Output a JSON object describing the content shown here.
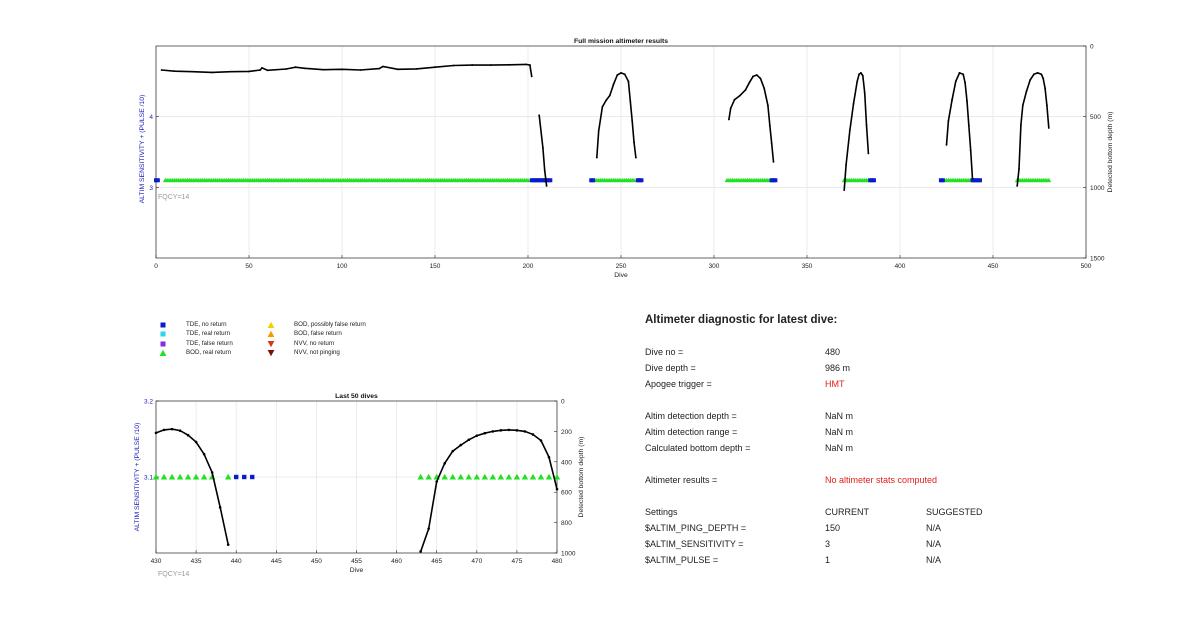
{
  "colors": {
    "tde_no_return": "#0a1cc8",
    "tde_real_return": "#2ad6ea",
    "tde_false_return": "#8a2be2",
    "bod_real_return": "#22e022",
    "bod_possibly_false_return": "#f5d000",
    "bod_false_return": "#f59a00",
    "nvv_no_return": "#d63a10",
    "nvv_not_pinging": "#7a1010",
    "depth_line": "#000000",
    "left_axis_label": "#1a1ab8",
    "grid": "#e6e6e6",
    "note": "#9a9a9a",
    "alert": "#e0201c"
  },
  "legend": [
    {
      "key": "tde_no_return",
      "marker": "square",
      "label": "TDE, no return"
    },
    {
      "key": "tde_real_return",
      "marker": "square",
      "label": "TDE, real return"
    },
    {
      "key": "tde_false_return",
      "marker": "square",
      "label": "TDE, false return"
    },
    {
      "key": "bod_real_return",
      "marker": "triangle-up",
      "label": "BOD, real return"
    },
    {
      "key": "bod_possibly_false_return",
      "marker": "triangle-up",
      "label": "BOD, possibly false return"
    },
    {
      "key": "bod_false_return",
      "marker": "triangle-up",
      "label": "BOD, false return"
    },
    {
      "key": "nvv_no_return",
      "marker": "triangle-down",
      "label": "NVV, no return"
    },
    {
      "key": "nvv_not_pinging",
      "marker": "triangle-down",
      "label": "NVV, not pinging"
    }
  ],
  "diagnostic": {
    "title": "Altimeter diagnostic for latest dive:",
    "dive_no": {
      "label": "Dive no =",
      "value": "480"
    },
    "dive_depth": {
      "label": "Dive depth =",
      "value": "986 m"
    },
    "apogee_trigger": {
      "label": "Apogee trigger =",
      "value": "HMT"
    },
    "altim_detection_depth": {
      "label": "Altim detection depth =",
      "value": "NaN m"
    },
    "altim_detection_range": {
      "label": "Altim detection range =",
      "value": "NaN m"
    },
    "calculated_bottom_depth": {
      "label": "Calculated bottom depth =",
      "value": "NaN m"
    },
    "altimeter_results": {
      "label": "Altimeter results =",
      "value": "No altimeter stats computed"
    },
    "settings_header": {
      "label": "Settings",
      "current": "CURRENT",
      "suggested": "SUGGESTED"
    },
    "settings": [
      {
        "label": "$ALTIM_PING_DEPTH =",
        "current": "150",
        "suggested": "N/A"
      },
      {
        "label": "$ALTIM_SENSITIVITY =",
        "current": "3",
        "suggested": "N/A"
      },
      {
        "label": "$ALTIM_PULSE =",
        "current": "1",
        "suggested": "N/A"
      }
    ]
  },
  "chart_data": [
    {
      "type": "scatter",
      "title": "Full mission altimeter results",
      "xlabel": "Dive",
      "ylabel_left": "ALTIM SENSITIVITY + (PULSE /10)",
      "ylabel_right": "Detected bottom depth (m)",
      "xlim": [
        0,
        500
      ],
      "ylim_left": [
        2,
        5
      ],
      "ylim_right": [
        0,
        1500
      ],
      "right_axis_reversed": true,
      "xticks": [
        0,
        50,
        100,
        150,
        200,
        250,
        300,
        350,
        400,
        450,
        500
      ],
      "yticks_left": [
        3,
        4
      ],
      "yticks_right": [
        0,
        500,
        1000,
        1500
      ],
      "grid": true,
      "note": "FQCY=14",
      "marker_rows": [
        {
          "key": "bod_real_return",
          "y": 3.1,
          "segments": [
            [
              5,
              200
            ],
            [
              236,
              257
            ],
            [
              307,
              331
            ],
            [
              370,
              383
            ],
            [
              424,
              438
            ],
            [
              463,
              480
            ]
          ]
        },
        {
          "key": "tde_no_return",
          "y": 3.1,
          "segments": [
            [
              0,
              1
            ],
            [
              202,
              212
            ],
            [
              234,
              235
            ],
            [
              259,
              261
            ],
            [
              331,
              333
            ],
            [
              384,
              386
            ],
            [
              422,
              423
            ],
            [
              439,
              443
            ]
          ]
        }
      ],
      "depth_series": [
        {
          "name": "",
          "x": [
            3,
            10,
            20,
            30,
            40,
            50,
            56,
            57,
            60,
            70,
            75,
            80,
            90,
            100,
            110,
            120,
            122,
            130,
            140,
            150,
            160,
            170,
            180,
            190,
            199,
            201,
            202
          ],
          "y": [
            170,
            178,
            182,
            187,
            182,
            180,
            170,
            155,
            172,
            163,
            150,
            158,
            168,
            165,
            170,
            160,
            145,
            165,
            162,
            150,
            138,
            135,
            135,
            133,
            130,
            135,
            215
          ]
        },
        {
          "name": "",
          "x": [
            206,
            208,
            209,
            210
          ],
          "y": [
            490,
            720,
            880,
            990
          ]
        },
        {
          "name": "",
          "x": [
            237,
            238,
            240,
            242,
            244,
            246,
            248,
            250,
            252,
            254,
            255,
            256,
            257,
            258
          ],
          "y": [
            790,
            600,
            430,
            385,
            350,
            270,
            205,
            190,
            200,
            250,
            390,
            530,
            680,
            790
          ]
        },
        {
          "name": "",
          "x": [
            308,
            309,
            311,
            314,
            317,
            319,
            321,
            323,
            325,
            327,
            329,
            330,
            331,
            332
          ],
          "y": [
            520,
            440,
            380,
            350,
            310,
            260,
            215,
            205,
            230,
            300,
            420,
            560,
            690,
            820
          ]
        },
        {
          "name": "",
          "x": [
            370,
            371,
            373,
            375,
            377,
            378,
            379,
            380,
            381,
            382,
            383
          ],
          "y": [
            1020,
            840,
            600,
            410,
            250,
            200,
            190,
            210,
            330,
            560,
            760
          ]
        },
        {
          "name": "",
          "x": [
            425,
            426,
            428,
            430,
            432,
            434,
            435,
            436,
            437,
            438,
            439
          ],
          "y": [
            700,
            530,
            380,
            250,
            190,
            200,
            260,
            390,
            560,
            740,
            940
          ]
        },
        {
          "name": "",
          "x": [
            463,
            464,
            465,
            466,
            468,
            470,
            472,
            474,
            476,
            477,
            478,
            479,
            480
          ],
          "y": [
            990,
            870,
            560,
            420,
            320,
            240,
            200,
            190,
            200,
            230,
            300,
            420,
            580
          ]
        }
      ]
    },
    {
      "type": "scatter",
      "title": "Last 50 dives",
      "xlabel": "Dive",
      "ylabel_left": "ALTIM SENSITIVITY + (PULSE /10)",
      "ylabel_right": "Detected bottom depth (m)",
      "xlim": [
        430,
        480
      ],
      "ylim_left": [
        3,
        3.2
      ],
      "ylim_right": [
        0,
        1000
      ],
      "right_axis_reversed": true,
      "xticks": [
        430,
        435,
        440,
        445,
        450,
        455,
        460,
        465,
        470,
        475,
        480
      ],
      "yticks_left": [
        3.1,
        3.2
      ],
      "yticks_right": [
        0,
        200,
        400,
        600,
        800,
        1000
      ],
      "grid": true,
      "note": "FQCY=14",
      "markers": [
        {
          "key": "bod_real_return",
          "y": 3.1,
          "x": [
            430,
            431,
            432,
            433,
            434,
            435,
            436,
            437,
            439,
            463,
            464,
            465,
            466,
            467,
            468,
            469,
            470,
            471,
            472,
            473,
            474,
            475,
            476,
            477,
            478,
            479,
            480
          ]
        },
        {
          "key": "tde_no_return",
          "y": 3.1,
          "x": [
            440,
            441,
            442
          ]
        }
      ],
      "depth_series": [
        {
          "name": "",
          "x": [
            430,
            431,
            432,
            433,
            434,
            435,
            436,
            437,
            438,
            439
          ],
          "y": [
            210,
            190,
            185,
            195,
            225,
            270,
            350,
            470,
            700,
            945
          ]
        },
        {
          "name": "",
          "x": [
            463,
            464,
            465,
            466,
            467,
            468,
            469,
            470,
            471,
            472,
            473,
            474,
            475,
            476,
            477,
            478,
            479,
            480
          ],
          "y": [
            990,
            840,
            530,
            410,
            330,
            290,
            255,
            228,
            212,
            200,
            193,
            190,
            193,
            200,
            220,
            260,
            370,
            580
          ]
        }
      ]
    }
  ]
}
